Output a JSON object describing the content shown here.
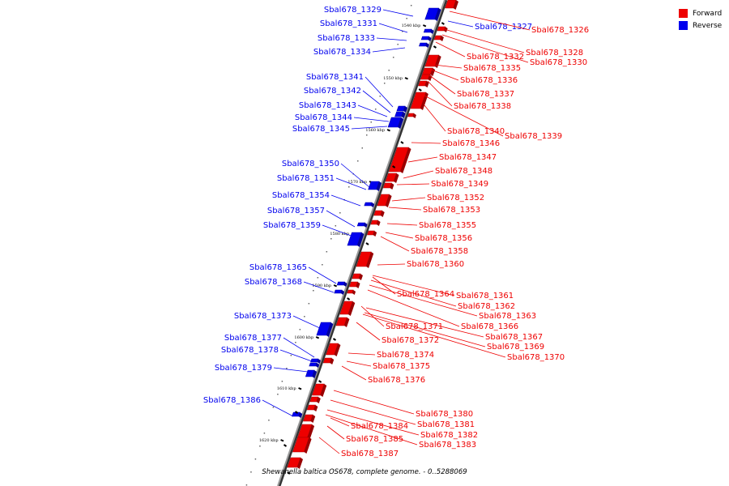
{
  "caption": "Shewanella baltica OS678, complete genome. - 0..5288069",
  "legend": [
    {
      "label": "Forward",
      "color": "#ee0000"
    },
    {
      "label": "Reverse",
      "color": "#0000ee"
    }
  ],
  "colors": {
    "forward": "#ee0000",
    "reverse": "#0000ee",
    "axis": "#777777"
  },
  "ticks": [
    "1540 kbp",
    "1550 kbp",
    "1560 kbp",
    "1570 kbp",
    "1580 kbp",
    "1590 kbp",
    "1600 kbp",
    "1610 kbp",
    "1620 kbp"
  ],
  "reverse_genes": [
    "Sbal678_1329",
    "Sbal678_1331",
    "Sbal678_1333",
    "Sbal678_1334",
    "Sbal678_1341",
    "Sbal678_1342",
    "Sbal678_1343",
    "Sbal678_1344",
    "Sbal678_1345",
    "Sbal678_1350",
    "Sbal678_1351",
    "Sbal678_1354",
    "Sbal678_1357",
    "Sbal678_1359",
    "Sbal678_1365",
    "Sbal678_1368",
    "Sbal678_1373",
    "Sbal678_1377",
    "Sbal678_1378",
    "Sbal678_1379",
    "Sbal678_1386",
    "Sbal678_1327"
  ],
  "forward_genes": [
    "Sbal678_1326",
    "Sbal678_1328",
    "Sbal678_1330",
    "Sbal678_1332",
    "Sbal678_1335",
    "Sbal678_1336",
    "Sbal678_1337",
    "Sbal678_1338",
    "Sbal678_1340",
    "Sbal678_1339",
    "Sbal678_1346",
    "Sbal678_1347",
    "Sbal678_1348",
    "Sbal678_1349",
    "Sbal678_1352",
    "Sbal678_1353",
    "Sbal678_1355",
    "Sbal678_1356",
    "Sbal678_1358",
    "Sbal678_1360",
    "Sbal678_1364",
    "Sbal678_1361",
    "Sbal678_1362",
    "Sbal678_1363",
    "Sbal678_1366",
    "Sbal678_1371",
    "Sbal678_1367",
    "Sbal678_1372",
    "Sbal678_1369",
    "Sbal678_1370",
    "Sbal678_1374",
    "Sbal678_1375",
    "Sbal678_1376",
    "Sbal678_1380",
    "Sbal678_1381",
    "Sbal678_1384",
    "Sbal678_1382",
    "Sbal678_1385",
    "Sbal678_1383",
    "Sbal678_1387"
  ]
}
